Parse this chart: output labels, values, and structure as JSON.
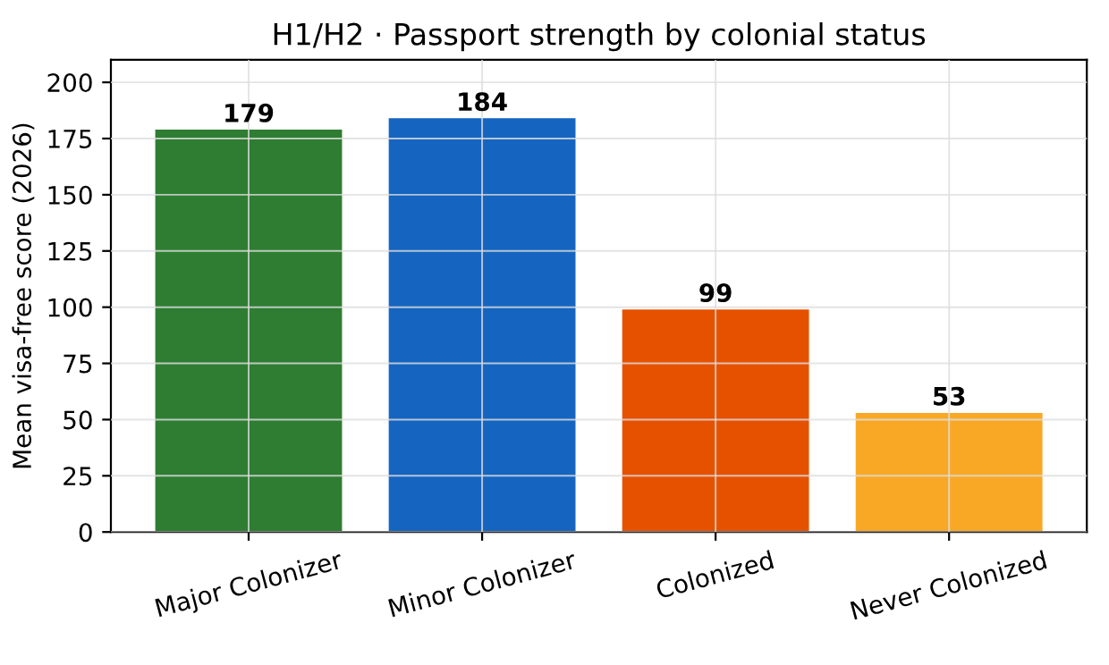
{
  "chart_data": {
    "type": "bar",
    "title": "H1/H2 · Passport strength by colonial status",
    "ylabel": "Mean visa-free score (2026)",
    "categories": [
      "Major Colonizer",
      "Minor Colonizer",
      "Colonized",
      "Never Colonized"
    ],
    "values": [
      179,
      184,
      99,
      53
    ],
    "colors": [
      "#2e7d32",
      "#1565c0",
      "#e65100",
      "#f9a825"
    ],
    "ylim": [
      0,
      210
    ],
    "yticks": [
      0,
      25,
      50,
      75,
      100,
      125,
      150,
      175,
      200
    ],
    "grid": true,
    "data_labels": true
  }
}
